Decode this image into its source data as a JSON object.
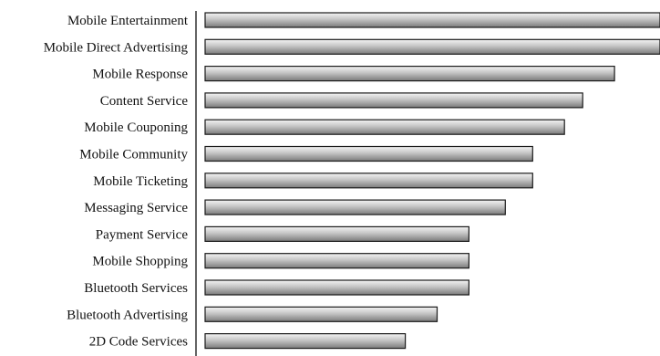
{
  "chart_data": {
    "type": "bar",
    "orientation": "horizontal",
    "title": "",
    "xlabel": "",
    "ylabel": "",
    "categories": [
      "Mobile Entertainment",
      "Mobile Direct Advertising",
      "Mobile Response",
      "Content Service",
      "Mobile Couponing",
      "Mobile Community",
      "Mobile Ticketing",
      "Messaging Service",
      "Payment Service",
      "Mobile Shopping",
      "Bluetooth Services",
      "Bluetooth Advertising",
      "2D Code Services"
    ],
    "values": [
      1.0,
      1.0,
      0.9,
      0.83,
      0.79,
      0.72,
      0.72,
      0.66,
      0.58,
      0.58,
      0.58,
      0.51,
      0.44
    ],
    "xlim": [
      0,
      1.0
    ],
    "grid": false,
    "legend": "none",
    "colors": {
      "bar_light": "#f4f4f4",
      "bar_mid": "#c4c4c4",
      "bar_dark": "#7a7a7a",
      "bar_stroke": "#1a1a1a",
      "axis": "#111111"
    }
  }
}
